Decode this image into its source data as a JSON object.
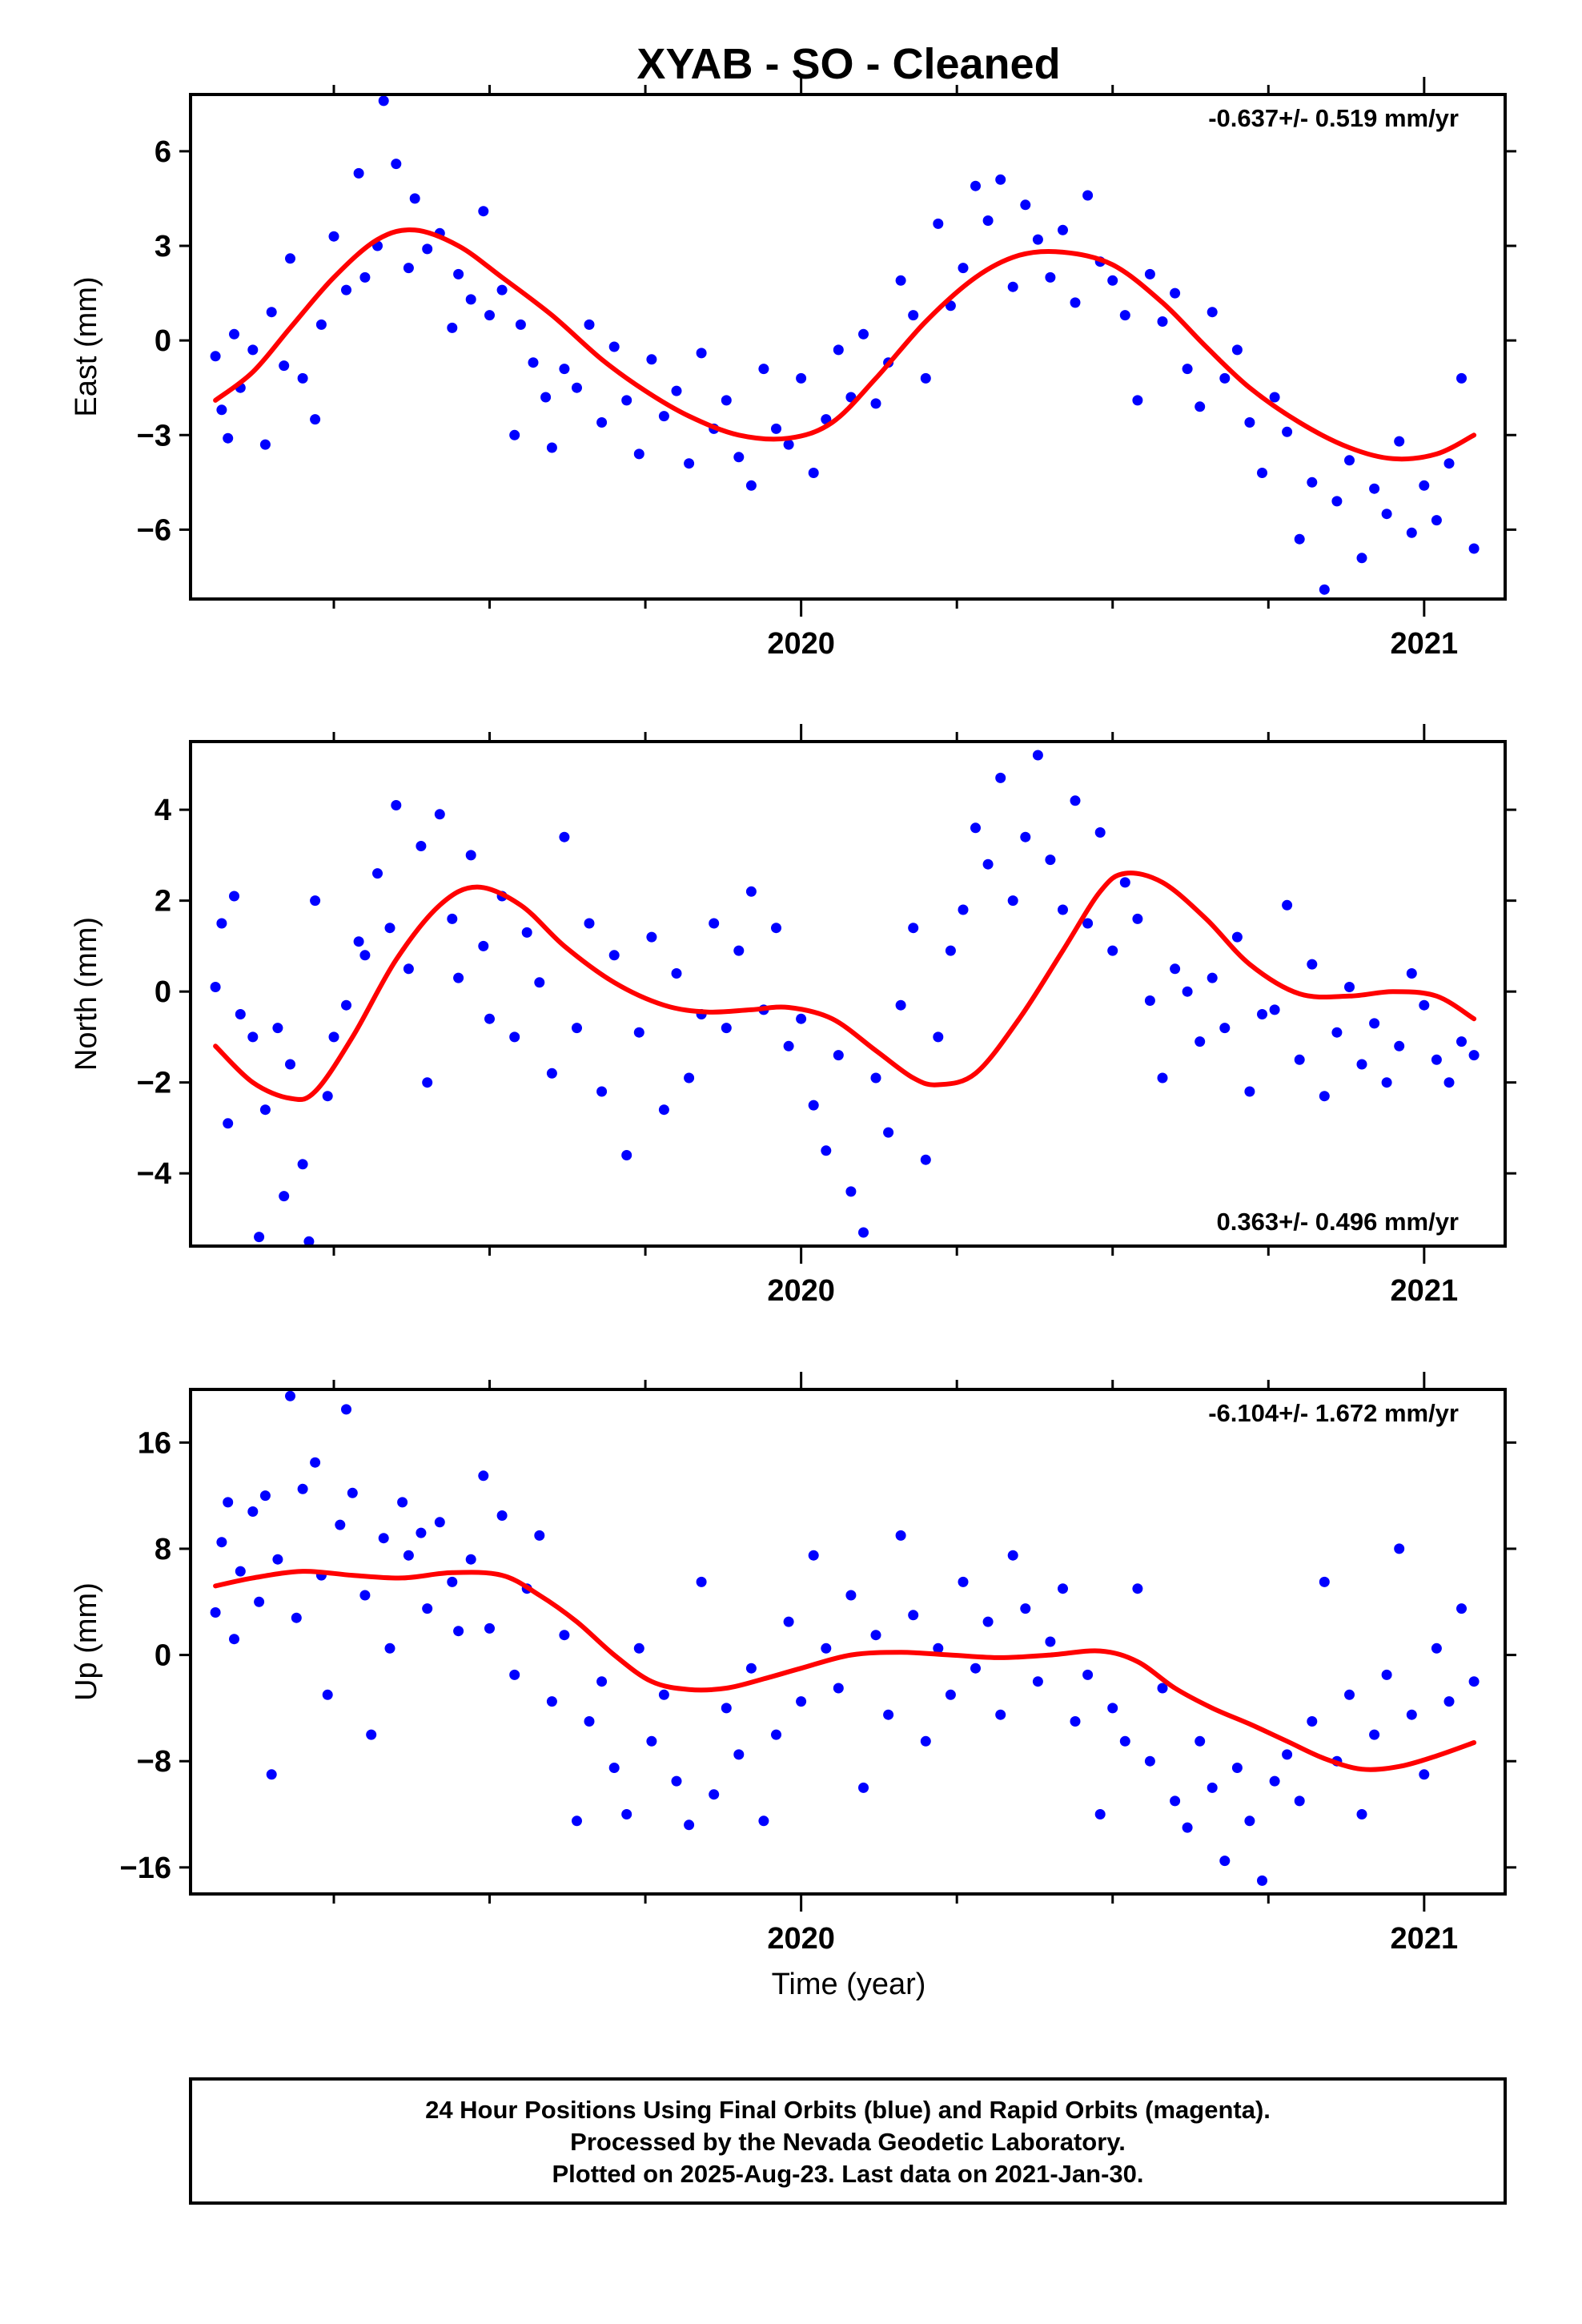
{
  "title": "XYAB  - SO - Cleaned",
  "xlabel": "Time (year)",
  "footer": [
    "24 Hour Positions Using Final Orbits (blue) and Rapid Orbits (magenta).",
    "Processed by the Nevada Geodetic Laboratory.",
    "Plotted on 2025-Aug-23. Last data on 2021-Jan-30."
  ],
  "colors": {
    "points": "#0000ff",
    "fit": "#ff0000",
    "frame": "#000000"
  },
  "chart_data": [
    {
      "type": "scatter",
      "ylabel": "East (mm)",
      "rate": "-0.637+/- 0.519 mm/yr",
      "rate_position": "top-right",
      "xlim": [
        2019.02,
        2021.13
      ],
      "ylim": [
        -8.2,
        7.8
      ],
      "yticks": [
        6,
        3,
        0,
        -3,
        -6
      ],
      "ytick_labels": [
        "6",
        "3",
        "0",
        "−3",
        "−6"
      ],
      "xticks": [
        2020,
        2021
      ],
      "xtick_labels": [
        "2020",
        "2021"
      ],
      "minor_xticks": [
        2019.25,
        2019.5,
        2019.75,
        2020.25,
        2020.5,
        2020.75
      ],
      "fit_curve": {
        "x": [
          2019.06,
          2019.12,
          2019.18,
          2019.25,
          2019.32,
          2019.38,
          2019.45,
          2019.52,
          2019.6,
          2019.68,
          2019.75,
          2019.82,
          2019.9,
          2019.98,
          2020.05,
          2020.12,
          2020.2,
          2020.28,
          2020.35,
          2020.42,
          2020.5,
          2020.58,
          2020.65,
          2020.72,
          2020.8,
          2020.88,
          2020.95,
          2021.02,
          2021.08
        ],
        "y": [
          -1.9,
          -1.0,
          0.4,
          2.0,
          3.2,
          3.5,
          3.0,
          2.0,
          0.8,
          -0.6,
          -1.6,
          -2.4,
          -3.0,
          -3.1,
          -2.6,
          -1.2,
          0.6,
          2.0,
          2.7,
          2.8,
          2.4,
          1.2,
          -0.2,
          -1.5,
          -2.6,
          -3.4,
          -3.75,
          -3.6,
          -3.0
        ]
      },
      "points": {
        "x": [
          2019.06,
          2019.07,
          2019.08,
          2019.09,
          2019.1,
          2019.12,
          2019.14,
          2019.15,
          2019.17,
          2019.18,
          2019.2,
          2019.22,
          2019.23,
          2019.25,
          2019.27,
          2019.29,
          2019.3,
          2019.32,
          2019.33,
          2019.35,
          2019.37,
          2019.38,
          2019.4,
          2019.42,
          2019.44,
          2019.45,
          2019.47,
          2019.49,
          2019.5,
          2019.52,
          2019.54,
          2019.55,
          2019.57,
          2019.59,
          2019.6,
          2019.62,
          2019.64,
          2019.66,
          2019.68,
          2019.7,
          2019.72,
          2019.74,
          2019.76,
          2019.78,
          2019.8,
          2019.82,
          2019.84,
          2019.86,
          2019.88,
          2019.9,
          2019.92,
          2019.94,
          2019.96,
          2019.98,
          2020.0,
          2020.02,
          2020.04,
          2020.06,
          2020.08,
          2020.1,
          2020.12,
          2020.14,
          2020.16,
          2020.18,
          2020.2,
          2020.22,
          2020.24,
          2020.26,
          2020.28,
          2020.3,
          2020.32,
          2020.34,
          2020.36,
          2020.38,
          2020.4,
          2020.42,
          2020.44,
          2020.46,
          2020.48,
          2020.5,
          2020.52,
          2020.54,
          2020.56,
          2020.58,
          2020.6,
          2020.62,
          2020.64,
          2020.66,
          2020.68,
          2020.7,
          2020.72,
          2020.74,
          2020.76,
          2020.78,
          2020.8,
          2020.82,
          2020.84,
          2020.86,
          2020.88,
          2020.9,
          2020.92,
          2020.94,
          2020.96,
          2020.98,
          2021.0,
          2021.02,
          2021.04,
          2021.06,
          2021.08
        ],
        "y": [
          -0.5,
          -2.2,
          -3.1,
          0.2,
          -1.5,
          -0.3,
          -3.3,
          0.9,
          -0.8,
          2.6,
          -1.2,
          -2.5,
          0.5,
          3.3,
          1.6,
          5.3,
          2.0,
          3.0,
          7.6,
          5.6,
          2.3,
          4.5,
          2.9,
          3.4,
          0.4,
          2.1,
          1.3,
          4.1,
          0.8,
          1.6,
          -3.0,
          0.5,
          -0.7,
          -1.8,
          -3.4,
          -0.9,
          -1.5,
          0.5,
          -2.6,
          -0.2,
          -1.9,
          -3.6,
          -0.6,
          -2.4,
          -1.6,
          -3.9,
          -0.4,
          -2.8,
          -1.9,
          -3.7,
          -4.6,
          -0.9,
          -2.8,
          -3.3,
          -1.2,
          -4.2,
          -2.5,
          -0.3,
          -1.8,
          0.2,
          -2.0,
          -0.7,
          1.9,
          0.8,
          -1.2,
          3.7,
          1.1,
          2.3,
          4.9,
          3.8,
          5.1,
          1.7,
          4.3,
          3.2,
          2.0,
          3.5,
          1.2,
          4.6,
          2.5,
          1.9,
          0.8,
          -1.9,
          2.1,
          0.6,
          1.5,
          -0.9,
          -2.1,
          0.9,
          -1.2,
          -0.3,
          -2.6,
          -4.2,
          -1.8,
          -2.9,
          -6.3,
          -4.5,
          -7.9,
          -5.1,
          -3.8,
          -6.9,
          -4.7,
          -5.5,
          -3.2,
          -6.1,
          -4.6,
          -5.7,
          -3.9,
          -1.2,
          -6.6
        ]
      }
    },
    {
      "type": "scatter",
      "ylabel": "North (mm)",
      "rate": "0.363+/- 0.496 mm/yr",
      "rate_position": "bottom-right",
      "xlim": [
        2019.02,
        2021.13
      ],
      "ylim": [
        -5.6,
        5.5
      ],
      "yticks": [
        4,
        2,
        0,
        -2,
        -4
      ],
      "ytick_labels": [
        "4",
        "2",
        "0",
        "−2",
        "−4"
      ],
      "xticks": [
        2020,
        2021
      ],
      "xtick_labels": [
        "2020",
        "2021"
      ],
      "minor_xticks": [
        2019.25,
        2019.5,
        2019.75,
        2020.25,
        2020.5,
        2020.75
      ],
      "fit_curve": {
        "x": [
          2019.06,
          2019.12,
          2019.18,
          2019.22,
          2019.28,
          2019.35,
          2019.42,
          2019.48,
          2019.55,
          2019.62,
          2019.7,
          2019.78,
          2019.85,
          2019.92,
          2019.98,
          2020.05,
          2020.12,
          2020.18,
          2020.22,
          2020.28,
          2020.35,
          2020.42,
          2020.48,
          2020.52,
          2020.58,
          2020.65,
          2020.72,
          2020.8,
          2020.88,
          2020.95,
          2021.02,
          2021.08
        ],
        "y": [
          -1.2,
          -2.0,
          -2.35,
          -2.2,
          -1.0,
          0.7,
          1.9,
          2.3,
          1.9,
          1.0,
          0.2,
          -0.3,
          -0.45,
          -0.4,
          -0.35,
          -0.6,
          -1.3,
          -1.9,
          -2.05,
          -1.8,
          -0.6,
          0.9,
          2.2,
          2.6,
          2.4,
          1.6,
          0.6,
          -0.05,
          -0.1,
          0.0,
          -0.1,
          -0.6
        ]
      },
      "points": {
        "x": [
          2019.06,
          2019.07,
          2019.08,
          2019.09,
          2019.1,
          2019.12,
          2019.13,
          2019.14,
          2019.16,
          2019.17,
          2019.18,
          2019.2,
          2019.21,
          2019.22,
          2019.24,
          2019.25,
          2019.27,
          2019.29,
          2019.3,
          2019.32,
          2019.34,
          2019.35,
          2019.37,
          2019.39,
          2019.4,
          2019.42,
          2019.44,
          2019.45,
          2019.47,
          2019.49,
          2019.5,
          2019.52,
          2019.54,
          2019.56,
          2019.58,
          2019.6,
          2019.62,
          2019.64,
          2019.66,
          2019.68,
          2019.7,
          2019.72,
          2019.74,
          2019.76,
          2019.78,
          2019.8,
          2019.82,
          2019.84,
          2019.86,
          2019.88,
          2019.9,
          2019.92,
          2019.94,
          2019.96,
          2019.98,
          2020.0,
          2020.02,
          2020.04,
          2020.06,
          2020.08,
          2020.1,
          2020.12,
          2020.14,
          2020.16,
          2020.18,
          2020.2,
          2020.22,
          2020.24,
          2020.26,
          2020.28,
          2020.3,
          2020.32,
          2020.34,
          2020.36,
          2020.38,
          2020.4,
          2020.42,
          2020.44,
          2020.46,
          2020.48,
          2020.5,
          2020.52,
          2020.54,
          2020.56,
          2020.58,
          2020.6,
          2020.62,
          2020.64,
          2020.66,
          2020.68,
          2020.7,
          2020.72,
          2020.74,
          2020.76,
          2020.78,
          2020.8,
          2020.82,
          2020.84,
          2020.86,
          2020.88,
          2020.9,
          2020.92,
          2020.94,
          2020.96,
          2020.98,
          2021.0,
          2021.02,
          2021.04,
          2021.06,
          2021.08
        ],
        "y": [
          0.1,
          1.5,
          -2.9,
          2.1,
          -0.5,
          -1.0,
          -5.4,
          -2.6,
          -0.8,
          -4.5,
          -1.6,
          -3.8,
          -5.5,
          2.0,
          -2.3,
          -1.0,
          -0.3,
          1.1,
          0.8,
          2.6,
          1.4,
          4.1,
          0.5,
          3.2,
          -2.0,
          3.9,
          1.6,
          0.3,
          3.0,
          1.0,
          -0.6,
          2.1,
          -1.0,
          1.3,
          0.2,
          -1.8,
          3.4,
          -0.8,
          1.5,
          -2.2,
          0.8,
          -3.6,
          -0.9,
          1.2,
          -2.6,
          0.4,
          -1.9,
          -0.5,
          1.5,
          -0.8,
          0.9,
          2.2,
          -0.4,
          1.4,
          -1.2,
          -0.6,
          -2.5,
          -3.5,
          -1.4,
          -4.4,
          -5.3,
          -1.9,
          -3.1,
          -0.3,
          1.4,
          -3.7,
          -1.0,
          0.9,
          1.8,
          3.6,
          2.8,
          4.7,
          2.0,
          3.4,
          5.2,
          2.9,
          1.8,
          4.2,
          1.5,
          3.5,
          0.9,
          2.4,
          1.6,
          -0.2,
          -1.9,
          0.5,
          0.0,
          -1.1,
          0.3,
          -0.8,
          1.2,
          -2.2,
          -0.5,
          -0.4,
          1.9,
          -1.5,
          0.6,
          -2.3,
          -0.9,
          0.1,
          -1.6,
          -0.7,
          -2.0,
          -1.2,
          0.4,
          -0.3,
          -1.5,
          -2.0,
          -1.1,
          -1.4
        ]
      }
    },
    {
      "type": "scatter",
      "ylabel": "Up (mm)",
      "rate": "-6.104+/- 1.672 mm/yr",
      "rate_position": "top-right",
      "xlim": [
        2019.02,
        2021.13
      ],
      "ylim": [
        -18,
        20
      ],
      "yticks": [
        16,
        8,
        0,
        -8,
        -16
      ],
      "ytick_labels": [
        "16",
        "8",
        "0",
        "−8",
        "−16"
      ],
      "xticks": [
        2020,
        2021
      ],
      "xtick_labels": [
        "2020",
        "2021"
      ],
      "minor_xticks": [
        2019.25,
        2019.5,
        2019.75,
        2020.25,
        2020.5,
        2020.75
      ],
      "fit_curve": {
        "x": [
          2019.06,
          2019.12,
          2019.2,
          2019.28,
          2019.36,
          2019.44,
          2019.52,
          2019.58,
          2019.64,
          2019.7,
          2019.76,
          2019.82,
          2019.88,
          2019.94,
          2020.0,
          2020.08,
          2020.16,
          2020.24,
          2020.32,
          2020.4,
          2020.48,
          2020.54,
          2020.6,
          2020.66,
          2020.72,
          2020.78,
          2020.84,
          2020.9,
          2020.96,
          2021.02,
          2021.08
        ],
        "y": [
          5.2,
          5.8,
          6.3,
          6.0,
          5.8,
          6.2,
          6.0,
          4.5,
          2.5,
          0.0,
          -2.0,
          -2.6,
          -2.5,
          -1.8,
          -1.0,
          0.0,
          0.2,
          0.0,
          -0.2,
          0.0,
          0.3,
          -0.5,
          -2.5,
          -4.0,
          -5.2,
          -6.5,
          -7.8,
          -8.6,
          -8.4,
          -7.6,
          -6.6
        ]
      },
      "points": {
        "x": [
          2019.06,
          2019.07,
          2019.08,
          2019.09,
          2019.1,
          2019.12,
          2019.13,
          2019.14,
          2019.15,
          2019.16,
          2019.18,
          2019.19,
          2019.2,
          2019.22,
          2019.23,
          2019.24,
          2019.26,
          2019.27,
          2019.28,
          2019.3,
          2019.31,
          2019.33,
          2019.34,
          2019.36,
          2019.37,
          2019.39,
          2019.4,
          2019.42,
          2019.44,
          2019.45,
          2019.47,
          2019.49,
          2019.5,
          2019.52,
          2019.54,
          2019.56,
          2019.58,
          2019.6,
          2019.62,
          2019.64,
          2019.66,
          2019.68,
          2019.7,
          2019.72,
          2019.74,
          2019.76,
          2019.78,
          2019.8,
          2019.82,
          2019.84,
          2019.86,
          2019.88,
          2019.9,
          2019.92,
          2019.94,
          2019.96,
          2019.98,
          2020.0,
          2020.02,
          2020.04,
          2020.06,
          2020.08,
          2020.1,
          2020.12,
          2020.14,
          2020.16,
          2020.18,
          2020.2,
          2020.22,
          2020.24,
          2020.26,
          2020.28,
          2020.3,
          2020.32,
          2020.34,
          2020.36,
          2020.38,
          2020.4,
          2020.42,
          2020.44,
          2020.46,
          2020.48,
          2020.5,
          2020.52,
          2020.54,
          2020.56,
          2020.58,
          2020.6,
          2020.62,
          2020.64,
          2020.66,
          2020.68,
          2020.7,
          2020.72,
          2020.74,
          2020.76,
          2020.78,
          2020.8,
          2020.82,
          2020.84,
          2020.86,
          2020.88,
          2020.9,
          2020.92,
          2020.94,
          2020.96,
          2020.98,
          2021.0,
          2021.02,
          2021.04,
          2021.06,
          2021.08
        ],
        "y": [
          3.2,
          8.5,
          11.5,
          1.2,
          6.3,
          10.8,
          4.0,
          12.0,
          -9.0,
          7.2,
          19.5,
          2.8,
          12.5,
          14.5,
          6.0,
          -3.0,
          9.8,
          18.5,
          12.2,
          4.5,
          -6.0,
          8.8,
          0.5,
          11.5,
          7.5,
          9.2,
          3.5,
          10.0,
          5.5,
          1.8,
          7.2,
          13.5,
          2.0,
          10.5,
          -1.5,
          5.0,
          9.0,
          -3.5,
          1.5,
          -12.5,
          -5.0,
          -2.0,
          -8.5,
          -12.0,
          0.5,
          -6.5,
          -3.0,
          -9.5,
          -12.8,
          5.5,
          -10.5,
          -4.0,
          -7.5,
          -1.0,
          -12.5,
          -6.0,
          2.5,
          -3.5,
          7.5,
          0.5,
          -2.5,
          4.5,
          -10.0,
          1.5,
          -4.5,
          9.0,
          3.0,
          -6.5,
          0.5,
          -3.0,
          5.5,
          -1.0,
          2.5,
          -4.5,
          7.5,
          3.5,
          -2.0,
          1.0,
          5.0,
          -5.0,
          -1.5,
          -12.0,
          -4.0,
          -6.5,
          5.0,
          -8.0,
          -2.5,
          -11.0,
          -13.0,
          -6.5,
          -10.0,
          -15.5,
          -8.5,
          -12.5,
          -17.0,
          -9.5,
          -7.5,
          -11.0,
          -5.0,
          5.5,
          -8.0,
          -3.0,
          -12.0,
          -6.0,
          -1.5,
          8.0,
          -4.5,
          -9.0,
          0.5,
          -3.5,
          3.5,
          -2.0
        ]
      }
    }
  ]
}
